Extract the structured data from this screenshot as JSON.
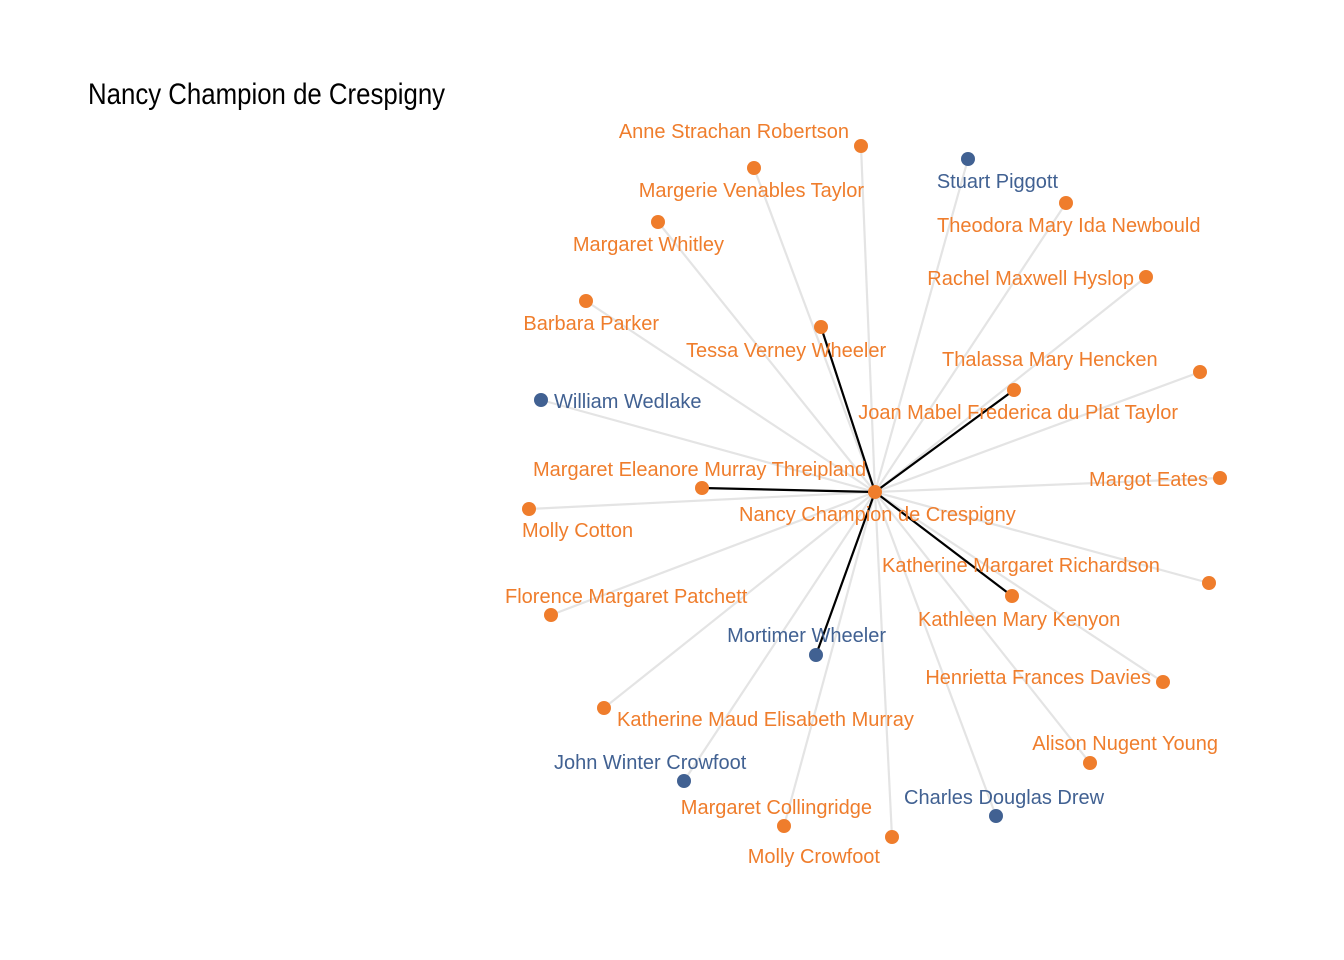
{
  "title": "Nancy Champion de Crespigny",
  "colors": {
    "female": "#ef7d2c",
    "male": "#416192",
    "edge_strong": "#000000",
    "edge_weak": "#e4e4e4"
  },
  "center": "Nancy Champion de Crespigny",
  "nodes": [
    {
      "id": "Nancy Champion de Crespigny",
      "label": "Nancy Champion de Crespigny",
      "group": "female"
    },
    {
      "id": "Anne Strachan Robertson",
      "label": "Anne Strachan Robertson",
      "group": "female"
    },
    {
      "id": "Margerie Venables Taylor",
      "label": "Margerie Venables Taylor",
      "group": "female"
    },
    {
      "id": "Stuart Piggott",
      "label": "Stuart Piggott",
      "group": "male"
    },
    {
      "id": "Theodora Mary Ida Newbould",
      "label": "Theodora Mary Ida Newbould",
      "group": "female"
    },
    {
      "id": "Margaret Whitley",
      "label": "Margaret Whitley",
      "group": "female"
    },
    {
      "id": "Rachel Maxwell Hyslop",
      "label": "Rachel Maxwell Hyslop",
      "group": "female"
    },
    {
      "id": "Barbara Parker",
      "label": "Barbara Parker",
      "group": "female"
    },
    {
      "id": "Tessa Verney Wheeler",
      "label": "Tessa Verney Wheeler",
      "group": "female"
    },
    {
      "id": "Thalassa Mary Hencken",
      "label": "Thalassa Mary Hencken",
      "group": "female"
    },
    {
      "id": "William Wedlake",
      "label": "William Wedlake",
      "group": "male"
    },
    {
      "id": "Joan Mabel Frederica du Plat Taylor",
      "label": "Joan Mabel Frederica du Plat Taylor",
      "group": "female"
    },
    {
      "id": "Margaret Eleanore Murray Threipland",
      "label": "Margaret Eleanore Murray Threipland",
      "group": "female"
    },
    {
      "id": "Margot Eates",
      "label": "Margot Eates",
      "group": "female"
    },
    {
      "id": "Molly Cotton",
      "label": "Molly Cotton",
      "group": "female"
    },
    {
      "id": "Katherine Margaret Richardson",
      "label": "Katherine Margaret Richardson",
      "group": "female"
    },
    {
      "id": "Florence Margaret Patchett",
      "label": "Florence Margaret Patchett",
      "group": "female"
    },
    {
      "id": "Kathleen Mary Kenyon",
      "label": "Kathleen Mary Kenyon",
      "group": "female"
    },
    {
      "id": "Mortimer Wheeler",
      "label": "Mortimer Wheeler",
      "group": "male"
    },
    {
      "id": "Henrietta Frances Davies",
      "label": "Henrietta Frances Davies",
      "group": "female"
    },
    {
      "id": "Katherine Maud Elisabeth Murray",
      "label": "Katherine Maud Elisabeth Murray",
      "group": "female"
    },
    {
      "id": "Alison Nugent Young",
      "label": "Alison Nugent Young",
      "group": "female"
    },
    {
      "id": "John Winter Crowfoot",
      "label": "John Winter Crowfoot",
      "group": "male"
    },
    {
      "id": "Charles Douglas Drew",
      "label": "Charles Douglas Drew",
      "group": "male"
    },
    {
      "id": "Margaret Collingridge",
      "label": "Margaret Collingridge",
      "group": "female"
    },
    {
      "id": "Molly Crowfoot",
      "label": "Molly Crowfoot",
      "group": "female"
    }
  ],
  "edges": [
    {
      "source": "Nancy Champion de Crespigny",
      "target": "Tessa Verney Wheeler",
      "strong": true
    },
    {
      "source": "Nancy Champion de Crespigny",
      "target": "Thalassa Mary Hencken",
      "strong": true
    },
    {
      "source": "Nancy Champion de Crespigny",
      "target": "Margaret Eleanore Murray Threipland",
      "strong": true
    },
    {
      "source": "Nancy Champion de Crespigny",
      "target": "Kathleen Mary Kenyon",
      "strong": true
    },
    {
      "source": "Nancy Champion de Crespigny",
      "target": "Mortimer Wheeler",
      "strong": true
    },
    {
      "source": "Nancy Champion de Crespigny",
      "target": "Anne Strachan Robertson",
      "strong": false
    },
    {
      "source": "Nancy Champion de Crespigny",
      "target": "Margerie Venables Taylor",
      "strong": false
    },
    {
      "source": "Nancy Champion de Crespigny",
      "target": "Stuart Piggott",
      "strong": false
    },
    {
      "source": "Nancy Champion de Crespigny",
      "target": "Theodora Mary Ida Newbould",
      "strong": false
    },
    {
      "source": "Nancy Champion de Crespigny",
      "target": "Margaret Whitley",
      "strong": false
    },
    {
      "source": "Nancy Champion de Crespigny",
      "target": "Rachel Maxwell Hyslop",
      "strong": false
    },
    {
      "source": "Nancy Champion de Crespigny",
      "target": "Barbara Parker",
      "strong": false
    },
    {
      "source": "Nancy Champion de Crespigny",
      "target": "Joan Mabel Frederica du Plat Taylor",
      "strong": false
    },
    {
      "source": "Nancy Champion de Crespigny",
      "target": "William Wedlake",
      "strong": false
    },
    {
      "source": "Nancy Champion de Crespigny",
      "target": "Margot Eates",
      "strong": false
    },
    {
      "source": "Nancy Champion de Crespigny",
      "target": "Molly Cotton",
      "strong": false
    },
    {
      "source": "Nancy Champion de Crespigny",
      "target": "Katherine Margaret Richardson",
      "strong": false
    },
    {
      "source": "Nancy Champion de Crespigny",
      "target": "Florence Margaret Patchett",
      "strong": false
    },
    {
      "source": "Nancy Champion de Crespigny",
      "target": "Henrietta Frances Davies",
      "strong": false
    },
    {
      "source": "Nancy Champion de Crespigny",
      "target": "Katherine Maud Elisabeth Murray",
      "strong": false
    },
    {
      "source": "Nancy Champion de Crespigny",
      "target": "Alison Nugent Young",
      "strong": false
    },
    {
      "source": "Nancy Champion de Crespigny",
      "target": "John Winter Crowfoot",
      "strong": false
    },
    {
      "source": "Nancy Champion de Crespigny",
      "target": "Charles Douglas Drew",
      "strong": false
    },
    {
      "source": "Nancy Champion de Crespigny",
      "target": "Margaret Collingridge",
      "strong": false
    },
    {
      "source": "Nancy Champion de Crespigny",
      "target": "Molly Crowfoot",
      "strong": false
    }
  ]
}
